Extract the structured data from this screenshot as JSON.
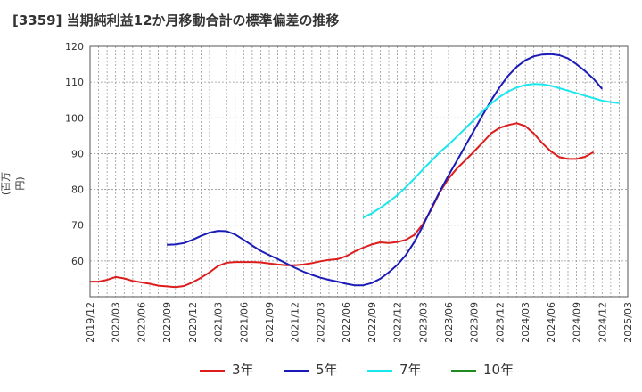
{
  "title": "[3359]  当期純利益12か月移動合計の標準偏差の推移",
  "chart_data": {
    "type": "line",
    "ylabel": "(百万円)",
    "ylim": [
      50,
      120
    ],
    "yticks": [
      60,
      70,
      80,
      90,
      100,
      110,
      120
    ],
    "xticks": [
      "2019/12",
      "2020/03",
      "2020/06",
      "2020/09",
      "2020/12",
      "2021/03",
      "2021/06",
      "2021/09",
      "2021/12",
      "2022/03",
      "2022/06",
      "2022/09",
      "2022/12",
      "2023/03",
      "2023/06",
      "2023/09",
      "2023/12",
      "2024/03",
      "2024/06",
      "2024/09",
      "2024/12",
      "2025/03"
    ],
    "grid": true,
    "legend_position": "bottom",
    "series": [
      {
        "name": "3年",
        "color": "#dd1c1c",
        "start_month": "2019/12",
        "values": [
          54.2,
          54.2,
          54.7,
          55.5,
          55.1,
          54.4,
          54.0,
          53.6,
          53.1,
          52.9,
          52.7,
          53.0,
          54.0,
          55.3,
          56.8,
          58.6,
          59.5,
          59.7,
          59.7,
          59.7,
          59.6,
          59.3,
          59.0,
          58.8,
          58.8,
          59.0,
          59.4,
          59.9,
          60.3,
          60.5,
          61.3,
          62.6,
          63.7,
          64.6,
          65.2,
          65.0,
          65.3,
          65.9,
          67.3,
          70.3,
          74.5,
          79.3,
          83.0,
          85.9,
          88.2,
          90.6,
          93.1,
          95.7,
          97.2,
          98.0,
          98.5,
          97.7,
          95.6,
          92.9,
          90.6,
          89.0,
          88.5,
          88.5,
          89.1,
          90.4
        ]
      },
      {
        "name": "5年",
        "color": "#1a1ab8",
        "start_month": "2020/09",
        "values": [
          64.5,
          64.6,
          65.0,
          65.9,
          67.0,
          67.9,
          68.4,
          68.3,
          67.4,
          65.9,
          64.3,
          62.8,
          61.6,
          60.5,
          59.3,
          58.1,
          57.0,
          56.1,
          55.3,
          54.7,
          54.2,
          53.6,
          53.2,
          53.2,
          53.8,
          55.0,
          56.8,
          58.9,
          61.6,
          65.3,
          69.8,
          74.8,
          79.5,
          83.9,
          88.1,
          92.3,
          96.5,
          100.8,
          104.9,
          108.6,
          111.8,
          114.3,
          116.1,
          117.2,
          117.7,
          117.8,
          117.5,
          116.6,
          115.0,
          113.1,
          110.9,
          108.1
        ]
      },
      {
        "name": "7年",
        "color": "#1ae6ee",
        "start_month": "2022/08",
        "values": [
          72.1,
          73.3,
          74.8,
          76.5,
          78.4,
          80.6,
          83.0,
          85.6,
          88.0,
          90.4,
          92.5,
          94.8,
          97.1,
          99.5,
          101.9,
          104.0,
          105.9,
          107.4,
          108.5,
          109.2,
          109.5,
          109.4,
          109.0,
          108.3,
          107.6,
          106.9,
          106.2,
          105.5,
          104.8,
          104.4,
          104.1
        ]
      },
      {
        "name": "10年",
        "color": "#1f8a1f",
        "start_month": "2019/12",
        "values": []
      }
    ]
  }
}
